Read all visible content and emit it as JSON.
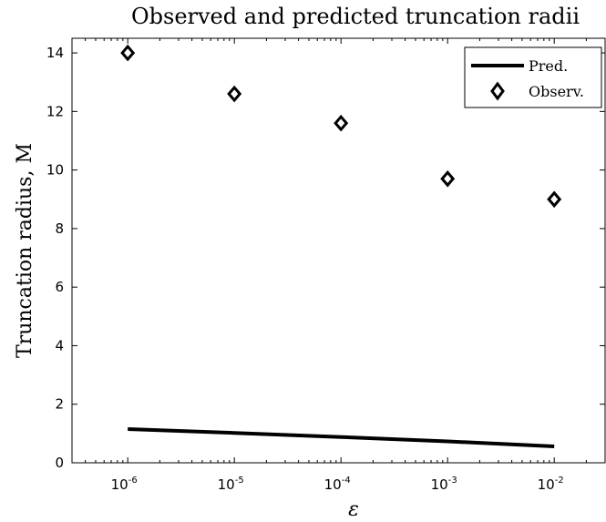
{
  "chart_data": {
    "type": "scatter",
    "title": "Observed and predicted truncation radii",
    "xlabel": "ε",
    "ylabel": "Truncation radius, M",
    "x_scale": "log",
    "xlim": [
      3e-07,
      0.03
    ],
    "ylim": [
      0,
      14.5
    ],
    "x_ticks": [
      {
        "value": 1e-06,
        "base": "10",
        "exp": "-6"
      },
      {
        "value": 1e-05,
        "base": "10",
        "exp": "-5"
      },
      {
        "value": 0.0001,
        "base": "10",
        "exp": "-4"
      },
      {
        "value": 0.001,
        "base": "10",
        "exp": "-3"
      },
      {
        "value": 0.01,
        "base": "10",
        "exp": "-2"
      }
    ],
    "y_ticks": [
      0,
      2,
      4,
      6,
      8,
      10,
      12,
      14
    ],
    "grid": false,
    "legend_position": "top-right",
    "series": [
      {
        "name": "Pred.",
        "kind": "line",
        "color": "#000000",
        "x": [
          1e-06,
          1e-05,
          0.0001,
          0.001,
          0.01
        ],
        "y": [
          1.15,
          1.02,
          0.88,
          0.73,
          0.56
        ]
      },
      {
        "name": "Observ.",
        "kind": "marker",
        "marker": "diamond",
        "color": "#000000",
        "x": [
          1e-06,
          1e-05,
          0.0001,
          0.001,
          0.01
        ],
        "y": [
          14.0,
          12.6,
          11.6,
          9.7,
          9.0
        ]
      }
    ]
  }
}
